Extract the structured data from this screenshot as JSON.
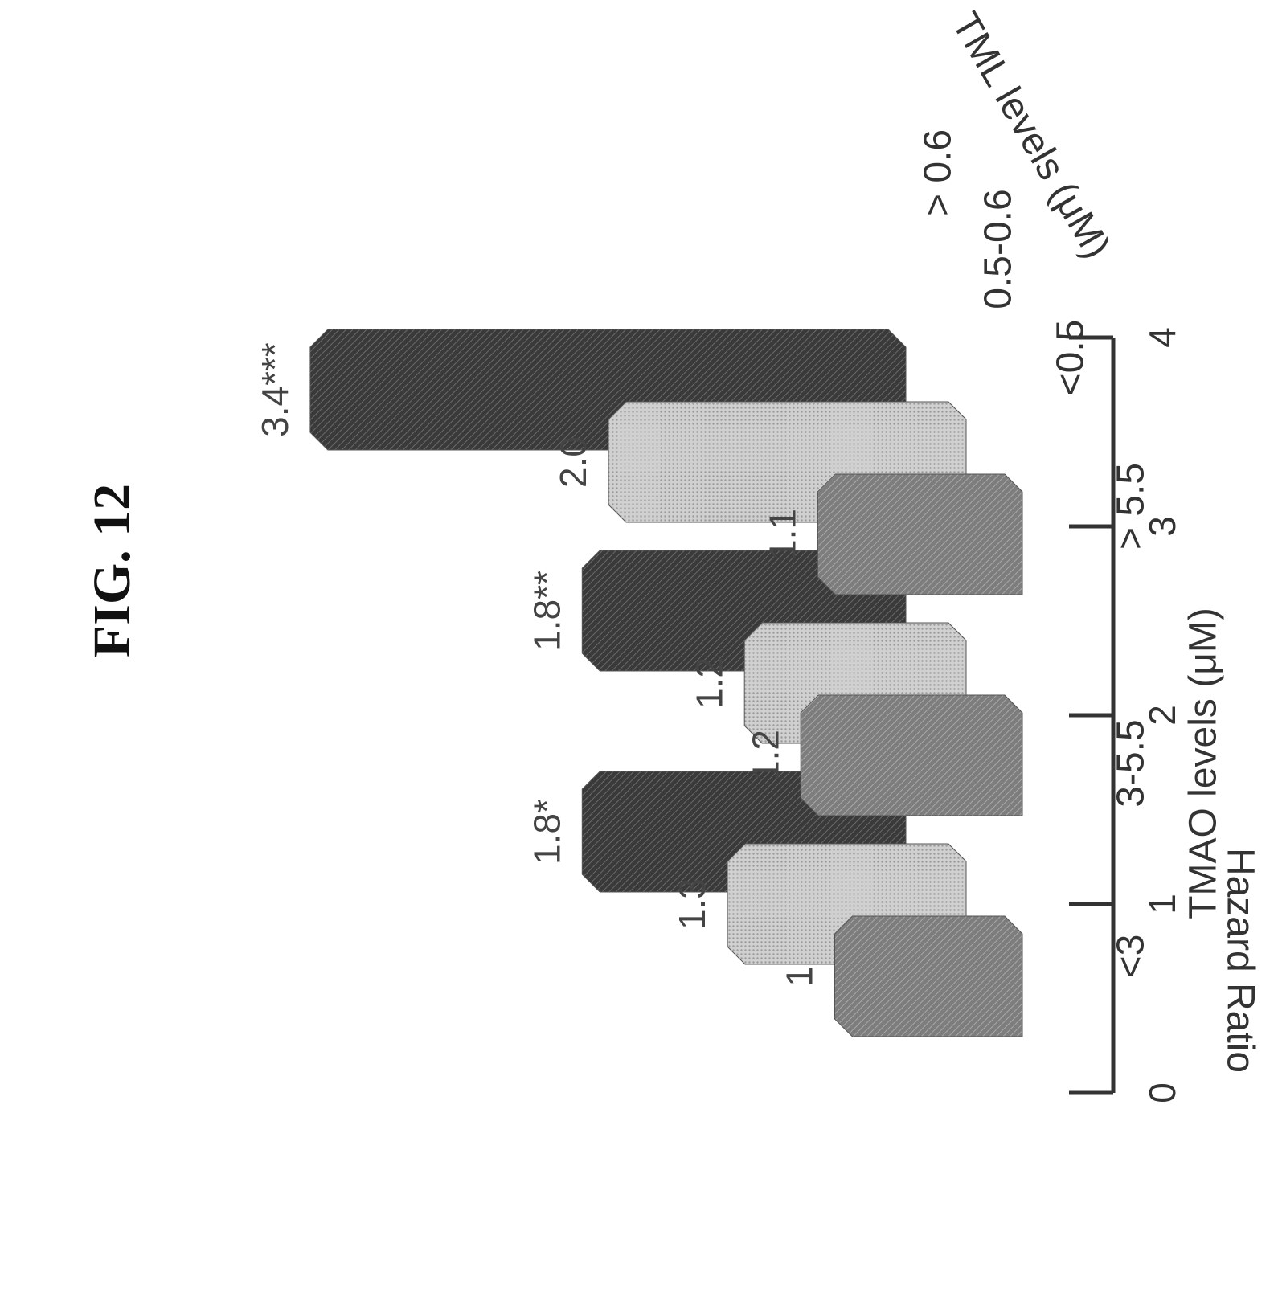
{
  "figure_label": "FIG. 12",
  "chart_data": {
    "type": "bar",
    "orientation": "rotated-3d-grouped",
    "xlabel": "TMAO levels (μM)",
    "ylabel": "Hazard Ratio",
    "depth_axis_label": "TML levels (μM)",
    "ylim": [
      0,
      4
    ],
    "yticks": [
      0,
      1,
      2,
      3,
      4
    ],
    "categories": [
      "<3",
      "3-5.5",
      "> 5.5"
    ],
    "series": [
      {
        "name": "<0.5",
        "values": [
          1,
          1.2,
          1.1
        ],
        "labels": [
          "1",
          "1.2",
          "1.1"
        ],
        "color": "#8a8a8a"
      },
      {
        "name": "0.5-0.6",
        "values": [
          1.3,
          1.2,
          2.0
        ],
        "labels": [
          "1.3",
          "1.2",
          "2.0"
        ],
        "color": "#c8c8c8"
      },
      {
        "name": "> 0.6",
        "values": [
          1.8,
          1.8,
          3.4
        ],
        "labels": [
          "1.8*",
          "1.8**",
          "3.4***"
        ],
        "color": "#4a4a4a"
      }
    ]
  }
}
